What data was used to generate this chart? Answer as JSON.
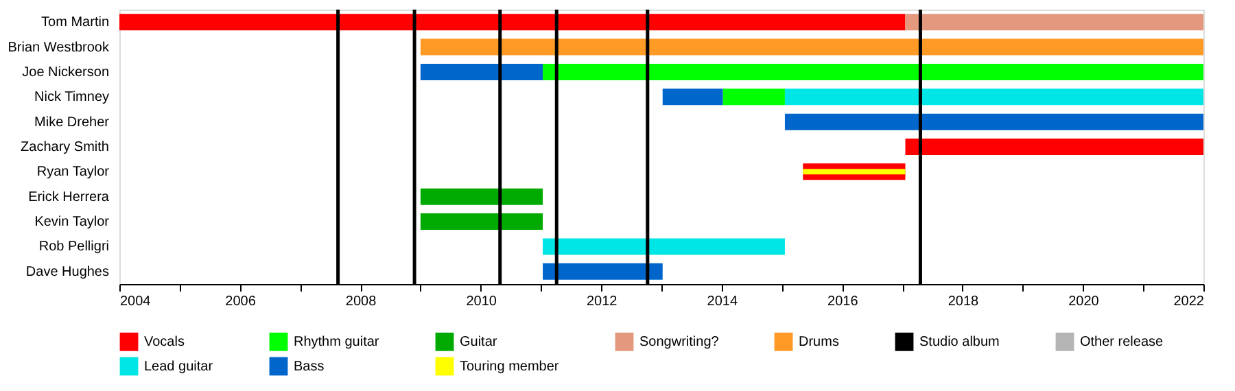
{
  "chart_data": {
    "type": "bar",
    "orientation": "horizontal",
    "categories": [
      "Tom Martin",
      "Brian Westbrook",
      "Joe Nickerson",
      "Nick Timney",
      "Mike Dreher",
      "Zachary Smith",
      "Ryan Taylor",
      "Erick Herrera",
      "Kevin Taylor",
      "Rob Pelligri",
      "Dave Hughes"
    ],
    "series": [
      {
        "name": "Vocals",
        "color": "#ff0000",
        "values": [
          13.05,
          null,
          null,
          null,
          null,
          4.95,
          1.7,
          null,
          null,
          null,
          null
        ],
        "base": [
          2004,
          null,
          null,
          null,
          null,
          2017.05,
          2015.35,
          null,
          null,
          null,
          null
        ]
      },
      {
        "name": "Rhythm guitar",
        "color": "#00ff00",
        "values": [
          null,
          null,
          10.97,
          1.03,
          null,
          null,
          null,
          null,
          null,
          null,
          null
        ],
        "base": [
          null,
          null,
          2011.03,
          2014.02,
          null,
          null,
          null,
          null,
          null,
          null,
          null
        ]
      },
      {
        "name": "Guitar",
        "color": "#00aa00",
        "values": [
          null,
          null,
          null,
          null,
          null,
          null,
          null,
          2.03,
          2.03,
          null,
          null
        ],
        "base": [
          null,
          null,
          null,
          null,
          null,
          null,
          null,
          2009,
          2009,
          null,
          null
        ]
      },
      {
        "name": "Songwriting?",
        "color": "#e4987e",
        "values": [
          4.95,
          null,
          null,
          null,
          null,
          null,
          null,
          null,
          null,
          null,
          null
        ],
        "base": [
          2017.05,
          null,
          null,
          null,
          null,
          null,
          null,
          null,
          null,
          null,
          null
        ]
      },
      {
        "name": "Drums",
        "color": "#ff9a26",
        "values": [
          null,
          13,
          null,
          null,
          null,
          null,
          null,
          null,
          null,
          null,
          null
        ],
        "base": [
          null,
          2009,
          null,
          null,
          null,
          null,
          null,
          null,
          null,
          null,
          null
        ]
      },
      {
        "name": "Studio album",
        "color": "#000000",
        "values": [
          null,
          null,
          null,
          null,
          null,
          null,
          null,
          null,
          null,
          null,
          null
        ],
        "base": [
          null,
          null,
          null,
          null,
          null,
          null,
          null,
          null,
          null,
          null,
          null
        ]
      },
      {
        "name": "Other release",
        "color": "#b4b4b4",
        "values": [
          null,
          null,
          null,
          null,
          null,
          null,
          null,
          null,
          null,
          null,
          null
        ],
        "base": [
          null,
          null,
          null,
          null,
          null,
          null,
          null,
          null,
          null,
          null,
          null
        ]
      },
      {
        "name": "Lead guitar",
        "color": "#00e5e5",
        "values": [
          null,
          null,
          null,
          6.95,
          null,
          null,
          null,
          null,
          null,
          4.02,
          null
        ],
        "base": [
          null,
          null,
          null,
          2015.05,
          null,
          null,
          null,
          null,
          null,
          2011.03,
          null
        ]
      },
      {
        "name": "Bass",
        "color": "#0066cc",
        "values": [
          null,
          null,
          2.03,
          1.0,
          6.95,
          null,
          null,
          null,
          null,
          null,
          1.99
        ],
        "base": [
          null,
          null,
          2009,
          2013.02,
          2015.05,
          null,
          null,
          null,
          null,
          null,
          2011.03
        ]
      },
      {
        "name": "Touring member",
        "color": "#ffff00",
        "values": [
          null,
          null,
          null,
          null,
          null,
          null,
          1.7,
          null,
          null,
          null,
          null
        ],
        "base": [
          null,
          null,
          null,
          null,
          null,
          null,
          2015.35,
          null,
          null,
          null,
          null
        ]
      }
    ],
    "ref_lines": [
      {
        "axis": "x",
        "value": 2007.63,
        "color": "#000000"
      },
      {
        "axis": "x",
        "value": 2008.9,
        "color": "#000000"
      },
      {
        "axis": "x",
        "value": 2010.32,
        "color": "#000000"
      },
      {
        "axis": "x",
        "value": 2011.26,
        "color": "#000000"
      },
      {
        "axis": "x",
        "value": 2012.77,
        "color": "#000000"
      },
      {
        "axis": "x",
        "value": 2017.3,
        "color": "#000000"
      }
    ],
    "xlim": [
      2004,
      2022
    ],
    "xticks": [
      2004,
      {
        "value": 2005,
        "label": null
      },
      2006,
      {
        "value": 2007,
        "label": null
      },
      2008,
      {
        "value": 2009,
        "label": null
      },
      2010,
      {
        "value": 2011,
        "label": null
      },
      2012,
      {
        "value": 2013,
        "label": null
      },
      2014,
      {
        "value": 2015,
        "label": null
      },
      2016,
      {
        "value": 2017,
        "label": null
      },
      2018,
      {
        "value": 2019,
        "label": null
      },
      2020,
      {
        "value": 2021,
        "label": null
      },
      2022
    ],
    "grid": false,
    "legend": "bottom"
  }
}
